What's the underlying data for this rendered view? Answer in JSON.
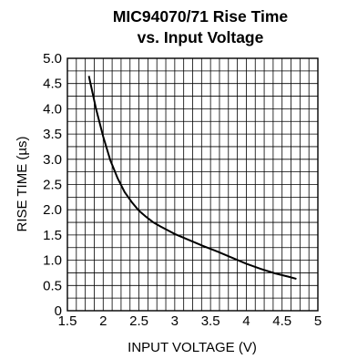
{
  "chart_data": {
    "type": "line",
    "title_line1": "MIC94070/71 Rise Time",
    "title_line2": "vs. Input Voltage",
    "xlabel": "INPUT VOLTAGE (V)",
    "ylabel": "RISE TIME (µs)",
    "xlim": [
      1.5,
      5
    ],
    "ylim": [
      0,
      5
    ],
    "x_ticks": [
      "1.5",
      "2",
      "2.5",
      "3",
      "3.5",
      "4",
      "4.5",
      "5"
    ],
    "y_ticks": [
      "0",
      "0.5",
      "1.0",
      "1.5",
      "2.0",
      "2.5",
      "3.0",
      "3.5",
      "4.0",
      "4.5",
      "5.0"
    ],
    "grid": true,
    "series": [
      {
        "x": [
          1.8,
          1.9,
          2.0,
          2.1,
          2.2,
          2.3,
          2.4,
          2.5,
          2.6,
          2.7,
          2.8,
          3.0,
          3.2,
          3.4,
          3.6,
          3.8,
          4.0,
          4.2,
          4.4,
          4.6,
          4.7
        ],
        "y": [
          4.65,
          4.0,
          3.45,
          2.98,
          2.63,
          2.35,
          2.15,
          1.98,
          1.86,
          1.75,
          1.67,
          1.52,
          1.4,
          1.28,
          1.17,
          1.05,
          0.93,
          0.83,
          0.74,
          0.67,
          0.63
        ]
      }
    ]
  }
}
